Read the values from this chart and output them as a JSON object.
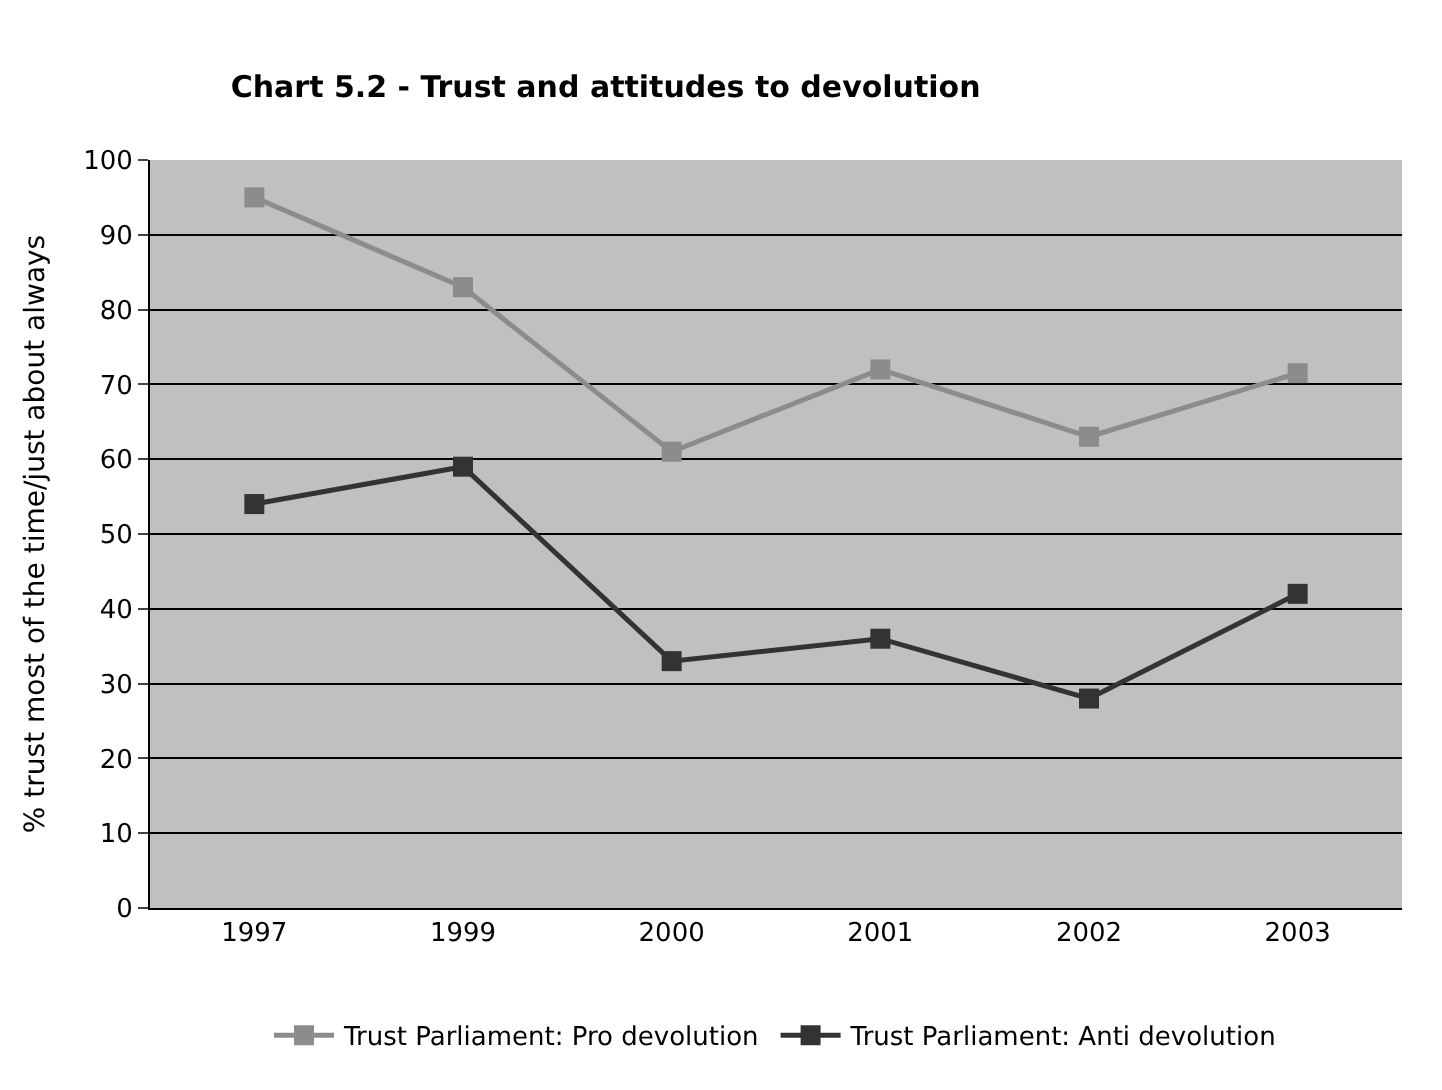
{
  "chart_data": {
    "type": "line",
    "title": "Chart 5.2 - Trust and attitudes to devolution",
    "ylabel": "% trust most of the time/just about always",
    "categories": [
      "1997",
      "1999",
      "2000",
      "2001",
      "2002",
      "2003"
    ],
    "series": [
      {
        "name": "Trust Parliament: Pro devolution",
        "color": "#8c8c8c",
        "values": [
          95,
          83,
          61,
          72,
          63,
          71.5
        ]
      },
      {
        "name": "Trust Parliament: Anti devolution",
        "color": "#333333",
        "values": [
          54,
          59,
          33,
          36,
          28,
          42
        ]
      }
    ],
    "ylim": [
      0,
      100
    ],
    "yticks": [
      0,
      10,
      20,
      30,
      40,
      50,
      60,
      70,
      80,
      90,
      100
    ],
    "grid": "y",
    "legend": "bottom",
    "marker": "square",
    "line_style": "solid"
  }
}
